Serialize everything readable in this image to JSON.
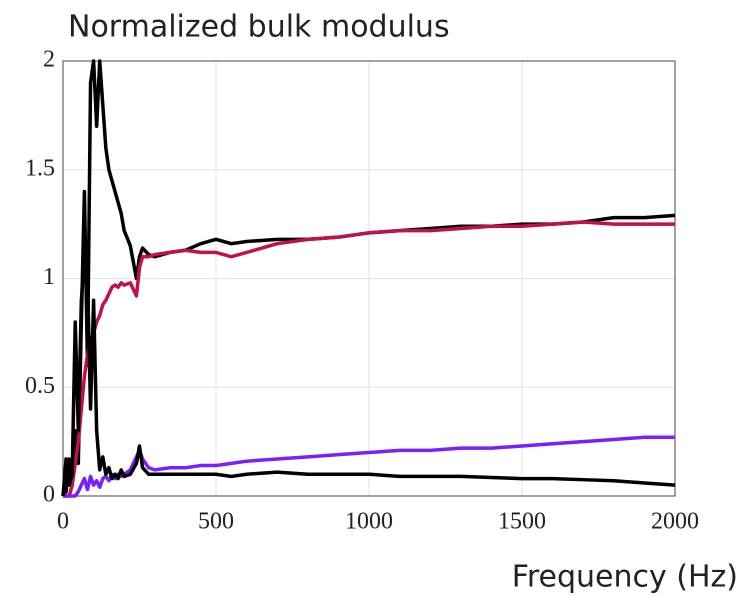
{
  "chart_data": {
    "type": "line",
    "title": "Normalized bulk modulus",
    "xlabel": "Frequency (Hz)",
    "x": [
      0,
      10,
      20,
      30,
      40,
      50,
      60,
      70,
      80,
      90,
      100,
      110,
      120,
      130,
      140,
      150,
      160,
      170,
      180,
      190,
      200,
      220,
      240,
      250,
      260,
      280,
      300,
      350,
      400,
      450,
      500,
      550,
      600,
      700,
      800,
      900,
      1000,
      1100,
      1200,
      1300,
      1400,
      1500,
      1600,
      1700,
      1800,
      1900,
      2000
    ],
    "series": [
      {
        "color": "#000000",
        "values": [
          0,
          0.02,
          0.17,
          0.05,
          0.3,
          0.15,
          0.8,
          1.4,
          0.6,
          1.9,
          2,
          1.7,
          2,
          1.8,
          1.6,
          1.5,
          1.45,
          1.4,
          1.35,
          1.3,
          1.22,
          1.15,
          1.0,
          1.1,
          1.14,
          1.11,
          1.1,
          1.12,
          1.13,
          1.16,
          1.18,
          1.16,
          1.17,
          1.18,
          1.18,
          1.19,
          1.21,
          1.22,
          1.23,
          1.24,
          1.24,
          1.25,
          1.25,
          1.26,
          1.28,
          1.28,
          1.29
        ]
      },
      {
        "color": "#c0104e",
        "values": [
          0,
          0,
          0,
          0.05,
          0.15,
          0.25,
          0.4,
          0.55,
          0.65,
          0.72,
          0.75,
          0.8,
          0.83,
          0.88,
          0.9,
          0.93,
          0.96,
          0.97,
          0.96,
          0.98,
          0.97,
          0.98,
          0.92,
          1.05,
          1.1,
          1.1,
          1.11,
          1.12,
          1.13,
          1.12,
          1.12,
          1.1,
          1.12,
          1.16,
          1.18,
          1.19,
          1.21,
          1.22,
          1.22,
          1.23,
          1.24,
          1.24,
          1.25,
          1.26,
          1.25,
          1.25,
          1.25
        ]
      },
      {
        "color": "#7a1fff",
        "values": [
          0,
          0,
          0,
          0,
          0,
          0.02,
          0.05,
          0.08,
          0.03,
          0.09,
          0.05,
          0.07,
          0.04,
          0.08,
          0.09,
          0.07,
          0.1,
          0.08,
          0.1,
          0.09,
          0.1,
          0.12,
          0.18,
          0.21,
          0.17,
          0.13,
          0.12,
          0.13,
          0.13,
          0.14,
          0.14,
          0.15,
          0.16,
          0.17,
          0.18,
          0.19,
          0.2,
          0.21,
          0.21,
          0.22,
          0.22,
          0.23,
          0.24,
          0.25,
          0.26,
          0.27,
          0.27
        ]
      },
      {
        "color": "#000000",
        "values": [
          0,
          0.17,
          0.05,
          0.1,
          0.8,
          0.3,
          0.9,
          1.1,
          1.0,
          0.4,
          0.9,
          0.3,
          0.12,
          0.18,
          0.1,
          0.13,
          0.08,
          0.1,
          0.08,
          0.12,
          0.09,
          0.1,
          0.15,
          0.23,
          0.13,
          0.1,
          0.1,
          0.1,
          0.1,
          0.1,
          0.1,
          0.09,
          0.1,
          0.11,
          0.1,
          0.1,
          0.1,
          0.09,
          0.09,
          0.09,
          0.085,
          0.08,
          0.08,
          0.075,
          0.07,
          0.06,
          0.05
        ]
      }
    ],
    "xlim": [
      0,
      2000
    ],
    "xticks": [
      0,
      500,
      1000,
      1500,
      2000
    ],
    "ylim": [
      0,
      2
    ],
    "yticks": [
      0,
      0.5,
      1,
      1.5,
      2
    ],
    "grid": true
  }
}
